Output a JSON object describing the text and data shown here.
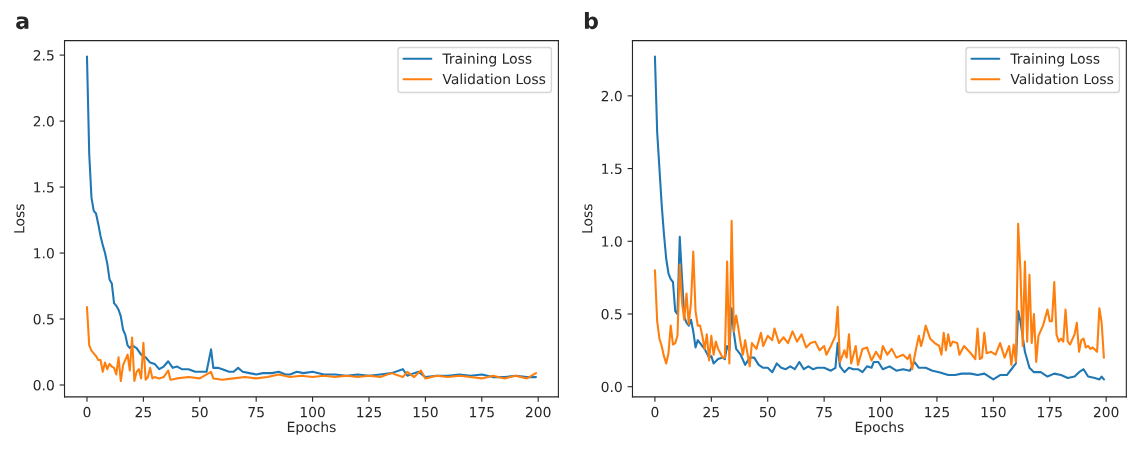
{
  "chart_data": [
    {
      "type": "line",
      "title": "a",
      "xlabel": "Epochs",
      "ylabel": "Loss",
      "xlim": [
        -9.95,
        208.95
      ],
      "ylim": [
        -0.09,
        2.61
      ],
      "xticks": [
        0,
        25,
        50,
        75,
        100,
        125,
        150,
        175,
        200
      ],
      "yticks": [
        {
          "value": 0,
          "label": "0.0"
        },
        0.5,
        {
          "value": 1,
          "label": "1.0"
        },
        1.5,
        {
          "value": 2,
          "label": "2.0"
        },
        2.5
      ],
      "legend": "top right",
      "grid": false,
      "series": [
        {
          "name": "Training Loss",
          "color": "#1f77b4",
          "x": [
            0,
            1,
            2,
            3,
            4,
            5,
            6,
            7,
            8,
            9,
            10,
            11,
            12,
            13,
            14,
            15,
            16,
            17,
            18,
            19,
            20,
            22,
            24,
            26,
            28,
            30,
            32,
            34,
            36,
            38,
            40,
            42,
            45,
            48,
            50,
            53,
            55,
            56,
            58,
            60,
            63,
            65,
            67,
            69,
            72,
            75,
            78,
            82,
            85,
            88,
            90,
            93,
            96,
            100,
            105,
            110,
            115,
            120,
            125,
            130,
            135,
            140,
            142,
            145,
            147,
            150,
            155,
            160,
            165,
            170,
            175,
            180,
            185,
            190,
            195,
            199
          ],
          "values": [
            2.49,
            1.75,
            1.42,
            1.32,
            1.3,
            1.22,
            1.13,
            1.06,
            1.0,
            0.92,
            0.8,
            0.77,
            0.62,
            0.6,
            0.57,
            0.52,
            0.42,
            0.38,
            0.3,
            0.28,
            0.3,
            0.28,
            0.23,
            0.21,
            0.17,
            0.16,
            0.12,
            0.14,
            0.18,
            0.13,
            0.14,
            0.12,
            0.12,
            0.1,
            0.1,
            0.1,
            0.27,
            0.13,
            0.13,
            0.12,
            0.1,
            0.1,
            0.13,
            0.1,
            0.09,
            0.08,
            0.09,
            0.09,
            0.1,
            0.08,
            0.08,
            0.1,
            0.09,
            0.1,
            0.08,
            0.08,
            0.07,
            0.08,
            0.07,
            0.08,
            0.09,
            0.12,
            0.07,
            0.09,
            0.1,
            0.06,
            0.07,
            0.07,
            0.08,
            0.07,
            0.08,
            0.06,
            0.06,
            0.07,
            0.06,
            0.06
          ]
        },
        {
          "name": "Validation Loss",
          "color": "#ff7f0e",
          "x": [
            0,
            1,
            2,
            3,
            4,
            5,
            6,
            7,
            8,
            9,
            10,
            11,
            12,
            13,
            14,
            15,
            16,
            17,
            18,
            19,
            20,
            21,
            22,
            23,
            24,
            25,
            26,
            27,
            28,
            29,
            30,
            32,
            34,
            36,
            37,
            40,
            45,
            50,
            55,
            56,
            60,
            65,
            70,
            75,
            80,
            85,
            90,
            95,
            100,
            105,
            110,
            115,
            120,
            125,
            130,
            135,
            140,
            142,
            145,
            148,
            150,
            155,
            160,
            165,
            170,
            175,
            180,
            185,
            190,
            195,
            199
          ],
          "values": [
            0.59,
            0.3,
            0.26,
            0.24,
            0.22,
            0.19,
            0.19,
            0.1,
            0.17,
            0.12,
            0.16,
            0.14,
            0.13,
            0.08,
            0.21,
            0.03,
            0.15,
            0.19,
            0.23,
            0.11,
            0.36,
            0.03,
            0.1,
            0.12,
            0.05,
            0.32,
            0.04,
            0.06,
            0.13,
            0.05,
            0.06,
            0.05,
            0.06,
            0.11,
            0.04,
            0.05,
            0.06,
            0.05,
            0.1,
            0.05,
            0.04,
            0.05,
            0.06,
            0.05,
            0.06,
            0.08,
            0.06,
            0.07,
            0.06,
            0.07,
            0.06,
            0.07,
            0.06,
            0.07,
            0.06,
            0.09,
            0.06,
            0.1,
            0.06,
            0.11,
            0.05,
            0.07,
            0.06,
            0.07,
            0.06,
            0.05,
            0.07,
            0.05,
            0.07,
            0.05,
            0.09
          ]
        }
      ]
    },
    {
      "type": "line",
      "title": "b",
      "xlabel": "Epochs",
      "ylabel": "Loss",
      "xlim": [
        -9.95,
        208.95
      ],
      "ylim": [
        -0.07,
        2.38
      ],
      "xticks": [
        0,
        25,
        50,
        75,
        100,
        125,
        150,
        175,
        200
      ],
      "yticks": [
        {
          "value": 0,
          "label": "0.0"
        },
        0.5,
        {
          "value": 1,
          "label": "1.0"
        },
        1.5,
        {
          "value": 2,
          "label": "2.0"
        }
      ],
      "legend": "top right",
      "grid": false,
      "series": [
        {
          "name": "Training Loss",
          "color": "#1f77b4",
          "x": [
            0,
            1,
            2,
            3,
            4,
            5,
            6,
            7,
            8,
            9,
            10,
            11,
            12,
            13,
            14,
            15,
            16,
            17,
            18,
            19,
            20,
            22,
            24,
            25,
            26,
            28,
            30,
            31,
            32,
            33,
            34,
            35,
            36,
            38,
            40,
            42,
            44,
            46,
            48,
            50,
            52,
            54,
            56,
            58,
            60,
            62,
            64,
            66,
            68,
            70,
            72,
            75,
            78,
            80,
            81,
            82,
            84,
            86,
            88,
            90,
            92,
            94,
            96,
            97,
            99,
            101,
            104,
            107,
            110,
            113,
            115,
            117,
            120,
            123,
            126,
            130,
            133,
            136,
            140,
            143,
            146,
            150,
            153,
            156,
            158,
            160,
            161,
            162,
            164,
            166,
            168,
            171,
            174,
            177,
            180,
            183,
            186,
            188,
            190,
            192,
            195,
            197,
            198,
            199
          ],
          "values": [
            2.27,
            1.75,
            1.5,
            1.25,
            1.05,
            0.88,
            0.78,
            0.74,
            0.72,
            0.52,
            0.5,
            1.03,
            0.75,
            0.48,
            0.44,
            0.42,
            0.46,
            0.38,
            0.27,
            0.32,
            0.3,
            0.26,
            0.2,
            0.21,
            0.16,
            0.19,
            0.2,
            0.19,
            0.28,
            0.25,
            0.54,
            0.37,
            0.26,
            0.22,
            0.15,
            0.2,
            0.2,
            0.15,
            0.13,
            0.13,
            0.1,
            0.16,
            0.13,
            0.12,
            0.14,
            0.12,
            0.17,
            0.12,
            0.14,
            0.12,
            0.13,
            0.13,
            0.11,
            0.13,
            0.3,
            0.14,
            0.1,
            0.13,
            0.12,
            0.12,
            0.1,
            0.14,
            0.13,
            0.17,
            0.17,
            0.12,
            0.14,
            0.11,
            0.12,
            0.11,
            0.17,
            0.13,
            0.13,
            0.11,
            0.1,
            0.08,
            0.08,
            0.09,
            0.09,
            0.08,
            0.09,
            0.05,
            0.08,
            0.08,
            0.12,
            0.16,
            0.52,
            0.45,
            0.24,
            0.13,
            0.1,
            0.1,
            0.07,
            0.09,
            0.08,
            0.06,
            0.07,
            0.1,
            0.12,
            0.07,
            0.06,
            0.05,
            0.07,
            0.05
          ]
        },
        {
          "name": "Validation Loss",
          "color": "#ff7f0e",
          "x": [
            0,
            1,
            2,
            3,
            4,
            5,
            6,
            7,
            8,
            9,
            10,
            11,
            12,
            13,
            14,
            15,
            16,
            17,
            18,
            19,
            20,
            21,
            22,
            23,
            24,
            25,
            26,
            27,
            28,
            29,
            30,
            31,
            32,
            33,
            34,
            35,
            36,
            37,
            38,
            39,
            40,
            42,
            43,
            45,
            47,
            48,
            50,
            52,
            53,
            55,
            57,
            59,
            61,
            63,
            65,
            67,
            69,
            71,
            73,
            75,
            76,
            78,
            80,
            81,
            82,
            84,
            85,
            86,
            87,
            89,
            90,
            92,
            94,
            96,
            98,
            100,
            101,
            103,
            105,
            107,
            110,
            112,
            113,
            114,
            116,
            117,
            118,
            119,
            120,
            122,
            124,
            126,
            127,
            128,
            129,
            130,
            131,
            132,
            134,
            135,
            137,
            140,
            142,
            143,
            144,
            145,
            146,
            147,
            149,
            151,
            153,
            155,
            157,
            158,
            159,
            160,
            161,
            162,
            163,
            164,
            165,
            166,
            167,
            168,
            169,
            170,
            172,
            174,
            175,
            176,
            177,
            178,
            179,
            180,
            181,
            182,
            183,
            184,
            186,
            187,
            188,
            189,
            190,
            191,
            192,
            193,
            194,
            196,
            197,
            198,
            199
          ],
          "values": [
            0.8,
            0.45,
            0.33,
            0.28,
            0.21,
            0.16,
            0.23,
            0.42,
            0.29,
            0.3,
            0.35,
            0.84,
            0.58,
            0.46,
            0.64,
            0.43,
            0.58,
            0.93,
            0.52,
            0.42,
            0.42,
            0.35,
            0.26,
            0.36,
            0.18,
            0.35,
            0.22,
            0.31,
            0.26,
            0.23,
            0.2,
            0.2,
            0.86,
            0.16,
            1.14,
            0.38,
            0.49,
            0.4,
            0.3,
            0.22,
            0.32,
            0.14,
            0.3,
            0.26,
            0.37,
            0.28,
            0.35,
            0.32,
            0.4,
            0.3,
            0.34,
            0.3,
            0.38,
            0.31,
            0.36,
            0.27,
            0.3,
            0.31,
            0.25,
            0.28,
            0.22,
            0.28,
            0.35,
            0.55,
            0.17,
            0.25,
            0.2,
            0.36,
            0.16,
            0.28,
            0.15,
            0.26,
            0.27,
            0.18,
            0.24,
            0.19,
            0.28,
            0.22,
            0.26,
            0.2,
            0.22,
            0.19,
            0.22,
            0.12,
            0.28,
            0.35,
            0.28,
            0.34,
            0.42,
            0.33,
            0.3,
            0.28,
            0.22,
            0.37,
            0.25,
            0.36,
            0.28,
            0.31,
            0.3,
            0.22,
            0.28,
            0.23,
            0.19,
            0.4,
            0.19,
            0.2,
            0.37,
            0.23,
            0.24,
            0.22,
            0.3,
            0.2,
            0.28,
            0.15,
            0.29,
            0.17,
            1.12,
            0.8,
            0.28,
            0.86,
            0.31,
            0.77,
            0.3,
            0.5,
            0.17,
            0.35,
            0.42,
            0.53,
            0.45,
            0.45,
            0.72,
            0.36,
            0.31,
            0.33,
            0.31,
            0.53,
            0.31,
            0.29,
            0.36,
            0.44,
            0.24,
            0.32,
            0.33,
            0.27,
            0.28,
            0.26,
            0.27,
            0.24,
            0.54,
            0.44,
            0.2
          ]
        }
      ]
    }
  ]
}
